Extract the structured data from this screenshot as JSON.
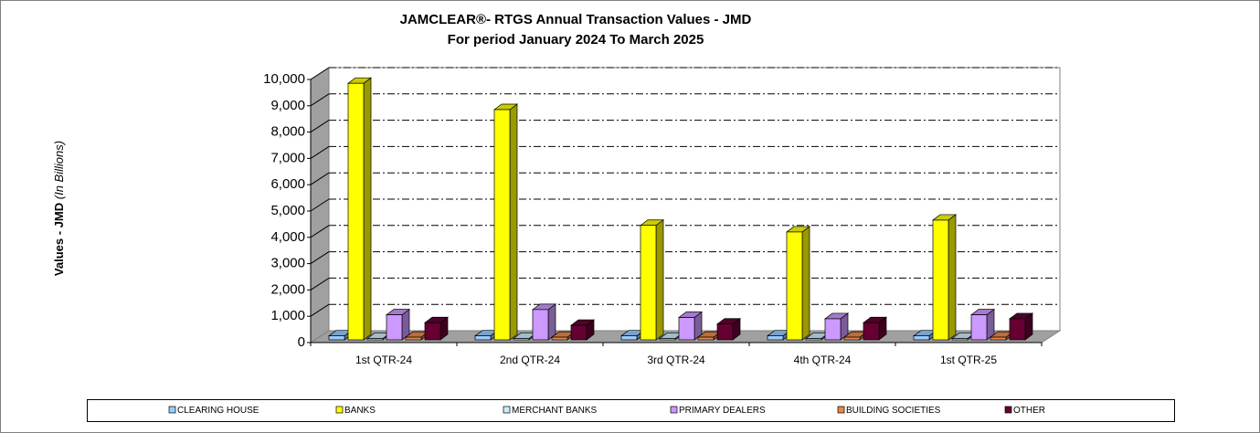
{
  "chart_data": {
    "type": "bar3d",
    "title": "JAMCLEAR®- RTGS Annual Transaction Values - JMD",
    "subtitle": "For period January 2024 To March 2025",
    "y_label": "Values - JMD",
    "y_label_unit": "(In Billions)",
    "categories": [
      "1st QTR-24",
      "2nd QTR-24",
      "3rd QTR-24",
      "4th QTR-24",
      "1st QTR-25"
    ],
    "series": [
      {
        "name": "CLEARING HOUSE",
        "color": "#99ccff",
        "values": [
          150,
          150,
          150,
          150,
          150
        ]
      },
      {
        "name": "BANKS",
        "color": "#ffff00",
        "values": [
          9750,
          8750,
          4350,
          4100,
          4550
        ]
      },
      {
        "name": "MERCHANT BANKS",
        "color": "#ccecff",
        "values": [
          50,
          50,
          50,
          50,
          50
        ]
      },
      {
        "name": "PRIMARY DEALERS",
        "color": "#cc99ff",
        "values": [
          950,
          1150,
          850,
          800,
          950
        ]
      },
      {
        "name": "BUILDING SOCIETIES",
        "color": "#e8894a",
        "values": [
          100,
          100,
          100,
          100,
          100
        ]
      },
      {
        "name": "OTHER",
        "color": "#660033",
        "values": [
          650,
          550,
          600,
          650,
          800
        ]
      }
    ],
    "ylim": [
      0,
      10000
    ],
    "yticks": [
      0,
      {
        "value": 1000,
        "label": "1,000"
      },
      {
        "value": 2000,
        "label": "2,000"
      },
      {
        "value": 3000,
        "label": "3,000"
      },
      {
        "value": 4000,
        "label": "4,000"
      },
      {
        "value": 5000,
        "label": "5,000"
      },
      {
        "value": 6000,
        "label": "6,000"
      },
      {
        "value": 7000,
        "label": "7,000"
      },
      {
        "value": 8000,
        "label": "8,000"
      },
      {
        "value": 9000,
        "label": "9,000"
      },
      {
        "value": 10000,
        "label": "10,000"
      }
    ],
    "grid": true,
    "legend": "bottom"
  }
}
